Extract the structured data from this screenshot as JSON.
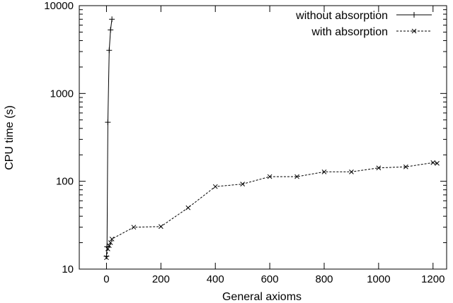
{
  "chart_data": {
    "type": "line",
    "title": "",
    "xlabel": "General axioms",
    "ylabel": "CPU time (s)",
    "xlim": [
      -100,
      1250
    ],
    "ylim": [
      10,
      10000
    ],
    "yscale": "log",
    "xticks": [
      0,
      200,
      400,
      600,
      800,
      1000,
      1200
    ],
    "yticks": [
      10,
      100,
      1000,
      10000
    ],
    "grid": false,
    "legend_position": "top-right",
    "series": [
      {
        "name": "without absorption",
        "marker": "plus",
        "line": "solid",
        "x": [
          0,
          2,
          5,
          10,
          15,
          20
        ],
        "y": [
          14,
          18,
          470,
          3100,
          5300,
          7000
        ]
      },
      {
        "name": "with absorption",
        "marker": "cross",
        "line": "dashed",
        "x": [
          0,
          5,
          10,
          15,
          20,
          100,
          200,
          300,
          400,
          500,
          600,
          700,
          800,
          900,
          1000,
          1100,
          1200,
          1215
        ],
        "y": [
          13.5,
          17,
          18.5,
          20,
          22,
          30,
          30.5,
          50,
          87,
          93,
          113,
          113,
          128,
          128,
          142,
          146,
          163,
          160
        ]
      }
    ]
  }
}
